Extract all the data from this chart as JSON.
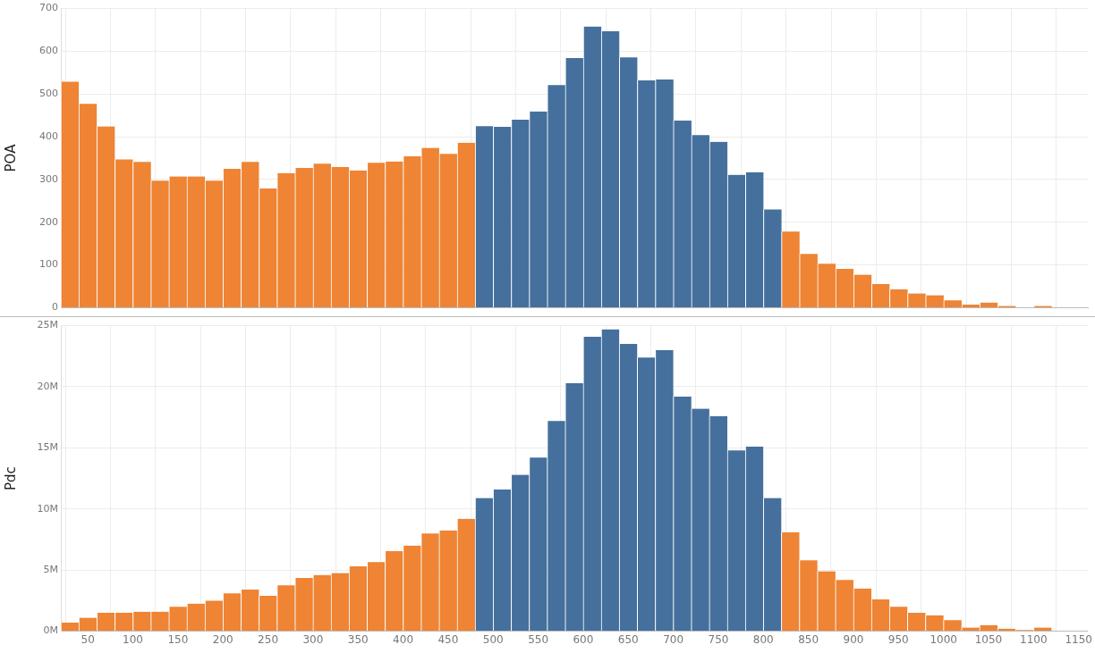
{
  "chart_data": [
    {
      "type": "histogram",
      "ylabel": "POA",
      "bins": [
        20,
        40,
        60,
        80,
        100,
        120,
        140,
        160,
        180,
        200,
        220,
        240,
        260,
        280,
        300,
        320,
        340,
        360,
        380,
        400,
        420,
        440,
        460,
        480,
        500,
        520,
        540,
        560,
        580,
        600,
        620,
        640,
        660,
        680,
        700,
        720,
        740,
        760,
        780,
        800,
        820,
        840,
        860,
        880,
        900,
        920,
        940,
        960,
        980,
        1000,
        1020,
        1040,
        1060,
        1080,
        1100,
        1120
      ],
      "values": [
        529,
        477,
        424,
        347,
        341,
        297,
        307,
        307,
        297,
        325,
        341,
        279,
        315,
        327,
        337,
        329,
        321,
        339,
        342,
        354,
        374,
        360,
        386,
        425,
        423,
        440,
        459,
        521,
        584,
        658,
        647,
        586,
        532,
        534,
        438,
        404,
        388,
        311,
        317,
        230,
        178,
        126,
        103,
        91,
        77,
        55,
        43,
        33,
        29,
        17,
        7,
        12,
        4,
        1,
        4
      ],
      "colors": [
        "#ee8434",
        "#ee8434",
        "#ee8434",
        "#ee8434",
        "#ee8434",
        "#ee8434",
        "#ee8434",
        "#ee8434",
        "#ee8434",
        "#ee8434",
        "#ee8434",
        "#ee8434",
        "#ee8434",
        "#ee8434",
        "#ee8434",
        "#ee8434",
        "#ee8434",
        "#ee8434",
        "#ee8434",
        "#ee8434",
        "#ee8434",
        "#ee8434",
        "#ee8434",
        "#45709d",
        "#45709d",
        "#45709d",
        "#45709d",
        "#45709d",
        "#45709d",
        "#45709d",
        "#45709d",
        "#45709d",
        "#45709d",
        "#45709d",
        "#45709d",
        "#45709d",
        "#45709d",
        "#45709d",
        "#45709d",
        "#45709d",
        "#ee8434",
        "#ee8434",
        "#ee8434",
        "#ee8434",
        "#ee8434",
        "#ee8434",
        "#ee8434",
        "#ee8434",
        "#ee8434",
        "#ee8434",
        "#ee8434",
        "#ee8434",
        "#ee8434",
        "#ee8434",
        "#ee8434"
      ],
      "xlim": [
        20,
        1160
      ],
      "xticks": [
        50,
        100,
        150,
        200,
        250,
        300,
        350,
        400,
        450,
        500,
        550,
        600,
        650,
        700,
        750,
        800,
        850,
        900,
        950,
        1000,
        1050,
        1100,
        1150
      ],
      "ylim": [
        0,
        700
      ],
      "yticks": [
        0,
        100,
        200,
        300,
        400,
        500,
        600,
        700
      ],
      "grid": true,
      "tick_labels": "y"
    },
    {
      "type": "histogram",
      "ylabel": "Pdc",
      "bins": [
        20,
        40,
        60,
        80,
        100,
        120,
        140,
        160,
        180,
        200,
        220,
        240,
        260,
        280,
        300,
        320,
        340,
        360,
        380,
        400,
        420,
        440,
        460,
        480,
        500,
        520,
        540,
        560,
        580,
        600,
        620,
        640,
        660,
        680,
        700,
        720,
        740,
        760,
        780,
        800,
        820,
        840,
        860,
        880,
        900,
        920,
        940,
        960,
        980,
        1000,
        1020,
        1040,
        1060,
        1080,
        1100,
        1120
      ],
      "values": [
        700000,
        1100000,
        1500000,
        1500000,
        1600000,
        1600000,
        2000000,
        2250000,
        2500000,
        3100000,
        3400000,
        2900000,
        3750000,
        4350000,
        4600000,
        4750000,
        5300000,
        5650000,
        6550000,
        7000000,
        8000000,
        8250000,
        9200000,
        10900000,
        11600000,
        12800000,
        14200000,
        17200000,
        20300000,
        24100000,
        24700000,
        23500000,
        22400000,
        23000000,
        19200000,
        18200000,
        17600000,
        14800000,
        15100000,
        10900000,
        8100000,
        5800000,
        4900000,
        4200000,
        3500000,
        2600000,
        2000000,
        1500000,
        1300000,
        900000,
        300000,
        500000,
        200000,
        100000,
        300000
      ],
      "colors": [
        "#ee8434",
        "#ee8434",
        "#ee8434",
        "#ee8434",
        "#ee8434",
        "#ee8434",
        "#ee8434",
        "#ee8434",
        "#ee8434",
        "#ee8434",
        "#ee8434",
        "#ee8434",
        "#ee8434",
        "#ee8434",
        "#ee8434",
        "#ee8434",
        "#ee8434",
        "#ee8434",
        "#ee8434",
        "#ee8434",
        "#ee8434",
        "#ee8434",
        "#ee8434",
        "#45709d",
        "#45709d",
        "#45709d",
        "#45709d",
        "#45709d",
        "#45709d",
        "#45709d",
        "#45709d",
        "#45709d",
        "#45709d",
        "#45709d",
        "#45709d",
        "#45709d",
        "#45709d",
        "#45709d",
        "#45709d",
        "#45709d",
        "#ee8434",
        "#ee8434",
        "#ee8434",
        "#ee8434",
        "#ee8434",
        "#ee8434",
        "#ee8434",
        "#ee8434",
        "#ee8434",
        "#ee8434",
        "#ee8434",
        "#ee8434",
        "#ee8434",
        "#ee8434",
        "#ee8434"
      ],
      "xlim": [
        20,
        1160
      ],
      "xticks": [
        50,
        100,
        150,
        200,
        250,
        300,
        350,
        400,
        450,
        500,
        550,
        600,
        650,
        700,
        750,
        800,
        850,
        900,
        950,
        1000,
        1050,
        1100,
        1150
      ],
      "ylim": [
        0,
        25000000
      ],
      "yticks": [
        {
          "value": 0,
          "label": "0M"
        },
        {
          "value": 5000000,
          "label": "5M"
        },
        {
          "value": 10000000,
          "label": "10M"
        },
        {
          "value": 15000000,
          "label": "15M"
        },
        {
          "value": 20000000,
          "label": "20M"
        },
        {
          "value": 25000000,
          "label": "25M"
        }
      ],
      "grid": true
    }
  ]
}
